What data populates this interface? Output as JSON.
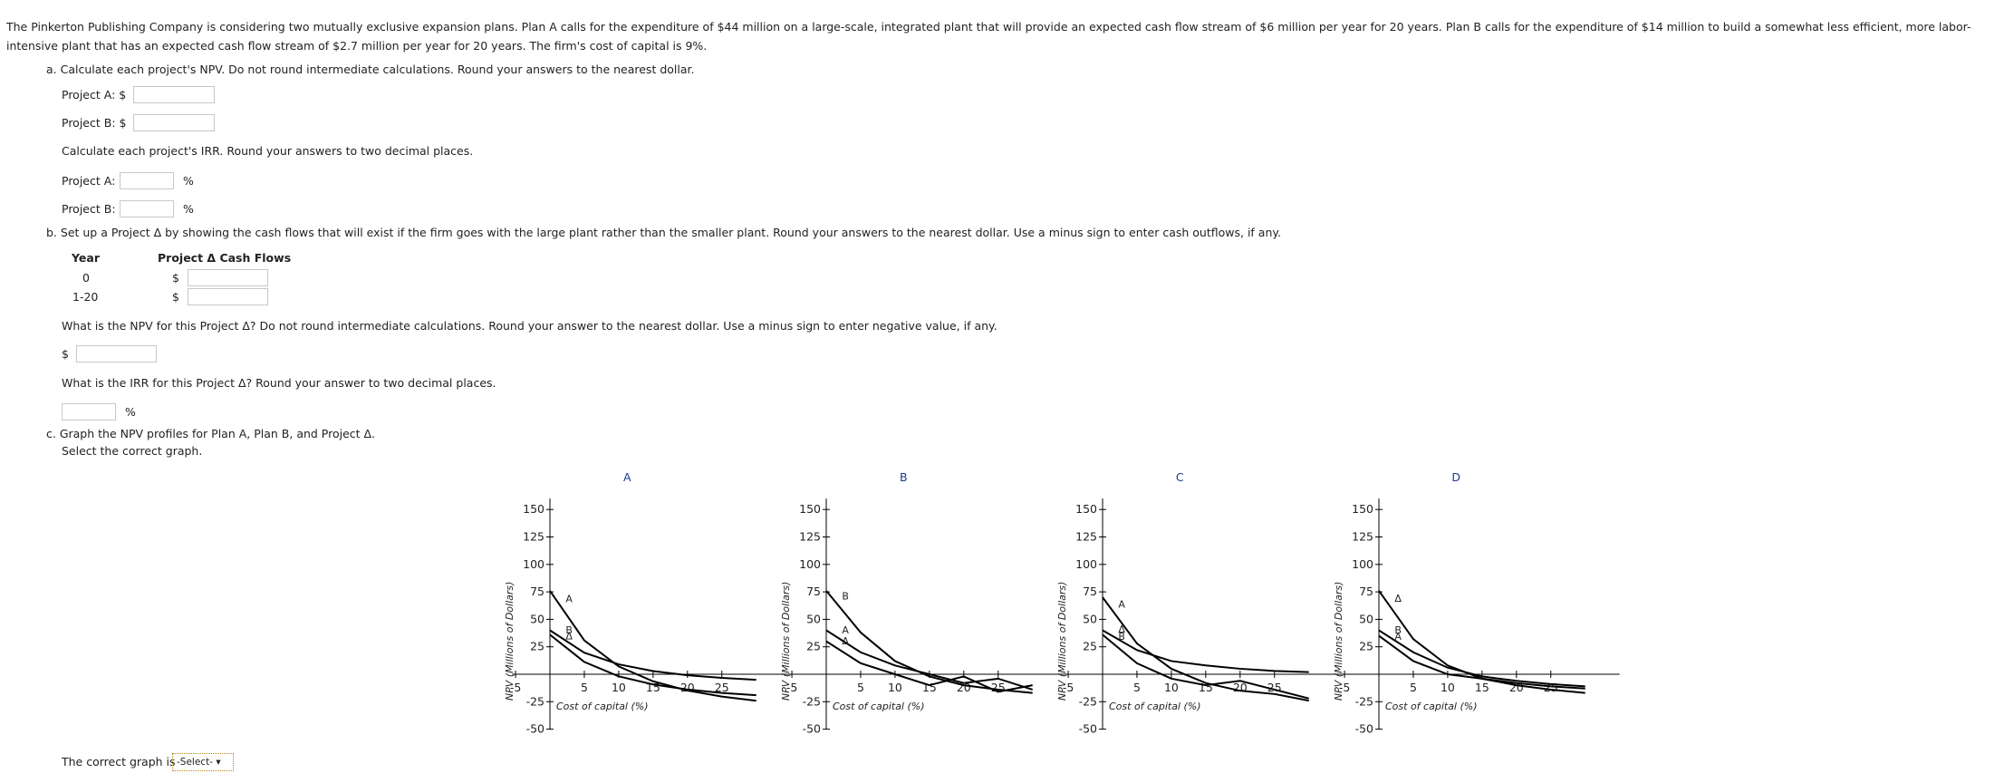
{
  "intro": "The Pinkerton Publishing Company is considering two mutually exclusive expansion plans. Plan A calls for the expenditure of $44 million on a large-scale, integrated plant that will provide an expected cash flow stream of $6 million per year for 20 years. Plan B calls for the expenditure of $14 million to build a somewhat less efficient, more labor-intensive plant that has an expected cash flow stream of $2.7 million per year for 20 years. The firm's cost of capital is 9%.",
  "part_a": {
    "instruction": "a. Calculate each project's NPV. Do not round intermediate calculations. Round your answers to the nearest dollar.",
    "npv_labels": [
      "Project A: $",
      "Project B: $"
    ],
    "irr_instruction": "Calculate each project's IRR. Round your answers to two decimal places.",
    "irr_labels": [
      "Project A:",
      "Project B:"
    ],
    "percent": "%"
  },
  "part_b": {
    "instruction": "b. Set up a Project Δ by showing the cash flows that will exist if the firm goes with the large plant rather than the smaller plant. Round your answers to the nearest dollar. Use a minus sign to enter cash outflows, if any.",
    "table": {
      "headers": [
        "Year",
        "Project Δ Cash Flows"
      ],
      "rows": [
        [
          "0",
          "$"
        ],
        [
          "1-20",
          "$"
        ]
      ]
    },
    "npv_question": "What is the NPV for this Project Δ? Do not round intermediate calculations. Round your answer to the nearest dollar. Use a minus sign to enter negative value, if any.",
    "dollar": "$",
    "irr_question": "What is the IRR for this Project Δ? Round your answer to two decimal places.",
    "percent": "%"
  },
  "part_c": {
    "instruction": "c. Graph the NPV profiles for Plan A, Plan B, and Project Δ.",
    "select_prompt": "Select the correct graph.",
    "answer_label": "The correct graph is",
    "select_placeholder": "-Select-"
  },
  "chart_data": [
    {
      "type": "line",
      "title": "A",
      "ylabel": "NPV (Millions of Dollars)",
      "xlabel": "Cost of capital (%)",
      "xlim": [
        -5.5,
        35
      ],
      "ylim": [
        -50,
        160
      ],
      "xticks": [
        -5,
        5,
        10,
        15,
        20,
        25
      ],
      "yticks": [
        -50,
        -25,
        25,
        50,
        75,
        100,
        125,
        150
      ],
      "x": [
        0,
        5,
        10,
        15,
        20,
        25,
        30
      ],
      "series": [
        {
          "name": "A",
          "values": [
            76,
            30.8,
            7.1,
            -6.4,
            -14.8,
            -20.3,
            -24.1
          ]
        },
        {
          "name": "B",
          "values": [
            40,
            19.6,
            9,
            2.9,
            -0.9,
            -3.3,
            -5.1
          ]
        },
        {
          "name": "Δ",
          "values": [
            36,
            11.2,
            -1.9,
            -9.3,
            -13.9,
            -17,
            -19.1
          ]
        }
      ]
    },
    {
      "type": "line",
      "title": "B",
      "ylabel": "NPV (Millions of Dollars)",
      "xlabel": "Cost of capital (%)",
      "xlim": [
        -5.5,
        35
      ],
      "ylim": [
        -50,
        160
      ],
      "xticks": [
        -5,
        5,
        10,
        15,
        20,
        25
      ],
      "yticks": [
        -50,
        -25,
        25,
        50,
        75,
        100,
        125,
        150
      ],
      "x": [
        0,
        5,
        10,
        15,
        20,
        25,
        30
      ],
      "series": [
        {
          "name": "B",
          "values": [
            76,
            38,
            12,
            -2,
            -10,
            -14,
            -17
          ]
        },
        {
          "name": "A",
          "values": [
            40,
            20,
            8,
            0,
            -8,
            -4,
            -14
          ]
        },
        {
          "name": "Δ",
          "values": [
            30,
            10,
            0,
            -10,
            -2,
            -16,
            -10
          ]
        }
      ]
    },
    {
      "type": "line",
      "title": "C",
      "ylabel": "NPV (Millions of Dollars)",
      "xlabel": "Cost of capital (%)",
      "xlim": [
        -5.5,
        35
      ],
      "ylim": [
        -50,
        160
      ],
      "xticks": [
        -5,
        5,
        10,
        15,
        20,
        25
      ],
      "yticks": [
        -50,
        -25,
        25,
        50,
        75,
        100,
        125,
        150
      ],
      "x": [
        0,
        5,
        10,
        15,
        20,
        25,
        30
      ],
      "series": [
        {
          "name": "A",
          "values": [
            70,
            28,
            5,
            -8,
            -15,
            -18,
            -24
          ]
        },
        {
          "name": "Δ",
          "values": [
            40,
            22,
            12,
            8,
            5,
            3,
            2
          ]
        },
        {
          "name": "B",
          "values": [
            36,
            10,
            -4,
            -10,
            -6,
            -14,
            -22
          ]
        }
      ]
    },
    {
      "type": "line",
      "title": "D",
      "ylabel": "NPV (Millions of Dollars)",
      "xlabel": "Cost of capital (%)",
      "xlim": [
        -5.5,
        35
      ],
      "ylim": [
        -50,
        160
      ],
      "xticks": [
        -5,
        5,
        10,
        15,
        20,
        25
      ],
      "yticks": [
        -50,
        -25,
        25,
        50,
        75,
        100,
        125,
        150
      ],
      "x": [
        0,
        5,
        10,
        15,
        20,
        25,
        30
      ],
      "series": [
        {
          "name": "Δ",
          "values": [
            76,
            32,
            8,
            -4,
            -10,
            -14,
            -17
          ]
        },
        {
          "name": "B",
          "values": [
            40,
            20,
            6,
            -2,
            -6,
            -9,
            -11
          ]
        },
        {
          "name": "A",
          "values": [
            35,
            12,
            0,
            -4,
            -8,
            -11,
            -13
          ]
        }
      ]
    }
  ]
}
